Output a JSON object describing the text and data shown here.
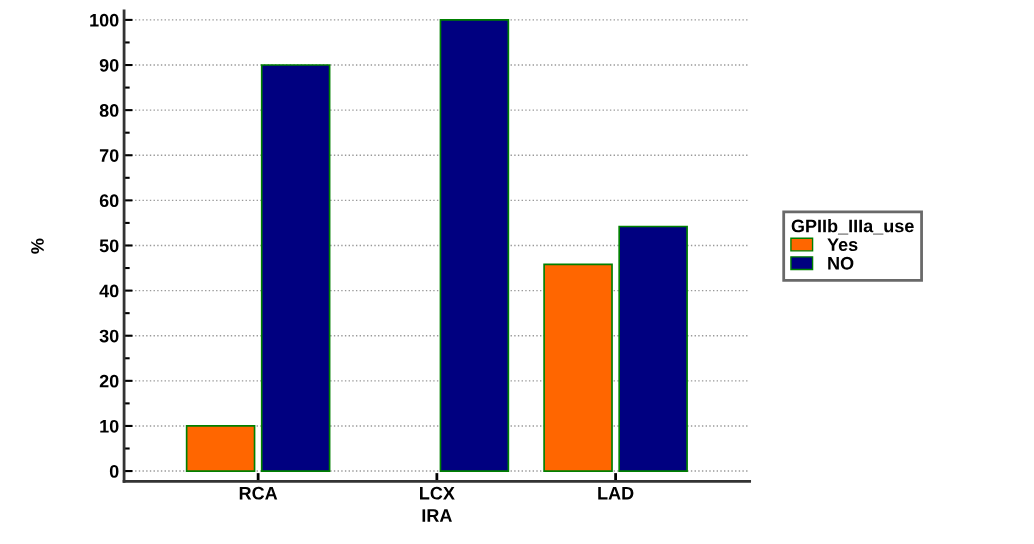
{
  "chart_data": {
    "type": "bar",
    "xlabel": "IRA",
    "ylabel": "%",
    "legend_title": "GPIIb_IIIa_use",
    "categories": [
      "RCA",
      "LCX",
      "LAD"
    ],
    "series": [
      {
        "name": "Yes",
        "color": "#ff6600",
        "values": [
          10,
          0,
          45.8
        ]
      },
      {
        "name": "NO",
        "color": "#000080",
        "values": [
          90,
          100,
          54.2
        ]
      }
    ],
    "ylim": [
      -2.3,
      102
    ],
    "yticks": [
      0,
      10,
      20,
      30,
      40,
      50,
      60,
      70,
      80,
      90,
      100
    ],
    "grid": "y",
    "legend": "right"
  }
}
